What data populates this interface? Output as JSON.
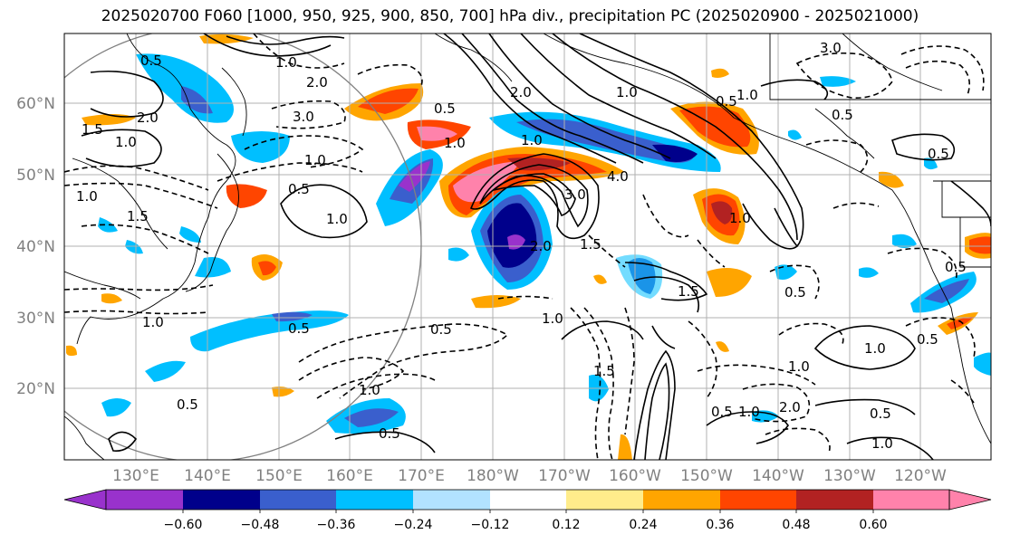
{
  "title": "2025020700 F060 [1000, 950, 925, 900, 850, 700] hPa div., precipitation PC (2025020900 - 2025021000)",
  "latitude_labels": [
    "60°N",
    "50°N",
    "40°N",
    "30°N",
    "20°N"
  ],
  "longitude_labels": [
    "130°E",
    "140°E",
    "150°E",
    "160°E",
    "170°E",
    "180°W",
    "170°W",
    "160°W",
    "150°W",
    "140°W",
    "130°W",
    "120°W"
  ],
  "contour_labels": [
    "0.5",
    "1.5",
    "2.0",
    "1.0",
    "1.0",
    "3.0",
    "0.5",
    "2.0",
    "1.0",
    "1.0",
    "1.5",
    "1.0",
    "0.5",
    "1.0",
    "1.0",
    "2.0",
    "1.0",
    "1.0",
    "4.0",
    "3.0",
    "2.0",
    "1.0",
    "0.5",
    "1.5",
    "1.0",
    "1.5",
    "0.5",
    "1.0",
    "0.5",
    "0.5",
    "0.5",
    "0.5",
    "1.0",
    "2.0",
    "1.0",
    "1.5",
    "1.0",
    "0.5",
    "3.0",
    "0.5",
    "0.5",
    "1.0",
    "0.5",
    "0.5",
    "0.5",
    "1.0"
  ],
  "colorbar": {
    "tick_labels": [
      "−0.60",
      "−0.48",
      "−0.36",
      "−0.24",
      "−0.12",
      "0.12",
      "0.24",
      "0.36",
      "0.48",
      "0.60"
    ],
    "colors": [
      "#9932cc",
      "#00008b",
      "#3a5fcd",
      "#00bfff",
      "#b2e2ff",
      "#ffffff",
      "#ffec8b",
      "#ffa500",
      "#ff4500",
      "#b22222",
      "#ff82ab"
    ]
  },
  "colors": {
    "coast": "#000000",
    "grid": "#b0b0b0",
    "contour": "#000000",
    "circle": "#808080",
    "tick_label": "#808080"
  }
}
